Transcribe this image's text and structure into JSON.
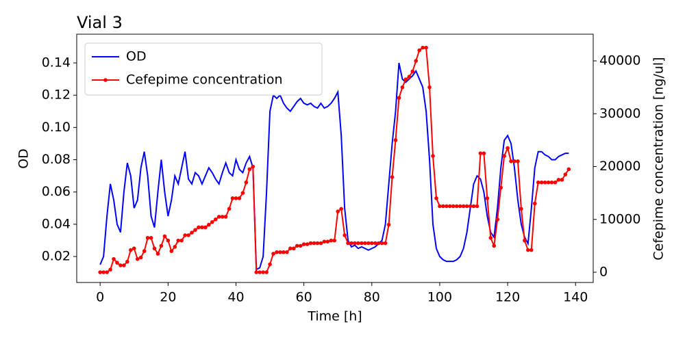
{
  "chart_data": {
    "type": "line",
    "title": "Vial 3",
    "x_label": "Time [h]",
    "y_label": "OD",
    "y2_label": "Cefepime concentration [ng/ul]",
    "xlim": [
      -6.9,
      145.2
    ],
    "ylim": [
      0.0039,
      0.1578
    ],
    "y2lim": [
      -1942,
      45050
    ],
    "xticks": [
      0,
      20,
      40,
      60,
      80,
      100,
      120,
      140
    ],
    "yticks": [
      0.02,
      0.04,
      0.06,
      0.08,
      {
        "value": 0.1,
        "label": "0.10"
      },
      0.12,
      0.14
    ],
    "y2ticks": [
      0,
      10000,
      20000,
      30000,
      40000
    ],
    "legend": "upper left",
    "x": [
      0,
      1,
      2,
      3,
      4,
      5,
      6,
      7,
      8,
      9,
      10,
      11,
      12,
      13,
      14,
      15,
      16,
      17,
      18,
      19,
      20,
      21,
      22,
      23,
      24,
      25,
      26,
      27,
      28,
      29,
      30,
      31,
      32,
      33,
      34,
      35,
      36,
      37,
      38,
      39,
      40,
      41,
      42,
      43,
      44,
      45,
      46,
      47,
      48,
      49,
      50,
      51,
      52,
      53,
      54,
      55,
      56,
      57,
      58,
      59,
      60,
      61,
      62,
      63,
      64,
      65,
      66,
      67,
      68,
      69,
      70,
      71,
      72,
      73,
      74,
      75,
      76,
      77,
      78,
      79,
      80,
      81,
      82,
      83,
      84,
      85,
      86,
      87,
      88,
      89,
      90,
      91,
      92,
      93,
      94,
      95,
      96,
      97,
      98,
      99,
      100,
      101,
      102,
      103,
      104,
      105,
      106,
      107,
      108,
      109,
      110,
      111,
      112,
      113,
      114,
      115,
      116,
      117,
      118,
      119,
      120,
      121,
      122,
      123,
      124,
      125,
      126,
      127,
      128,
      129,
      130,
      131,
      132,
      133,
      134,
      135,
      136,
      137,
      138
    ],
    "series": [
      {
        "name": "OD",
        "color": "#0000ff",
        "axis": "y",
        "marker": false,
        "values": [
          0.015,
          0.02,
          0.045,
          0.065,
          0.055,
          0.04,
          0.035,
          0.06,
          0.078,
          0.07,
          0.05,
          0.055,
          0.075,
          0.085,
          0.07,
          0.045,
          0.038,
          0.06,
          0.08,
          0.06,
          0.045,
          0.055,
          0.07,
          0.065,
          0.075,
          0.085,
          0.068,
          0.065,
          0.072,
          0.07,
          0.065,
          0.07,
          0.075,
          0.072,
          0.068,
          0.065,
          0.072,
          0.078,
          0.072,
          0.07,
          0.08,
          0.074,
          0.072,
          0.078,
          0.082,
          0.075,
          0.012,
          0.013,
          0.02,
          0.06,
          0.11,
          0.12,
          0.118,
          0.12,
          0.115,
          0.112,
          0.11,
          0.113,
          0.116,
          0.118,
          0.115,
          0.114,
          0.115,
          0.113,
          0.112,
          0.115,
          0.112,
          0.113,
          0.115,
          0.118,
          0.122,
          0.095,
          0.05,
          0.03,
          0.026,
          0.027,
          0.025,
          0.026,
          0.025,
          0.024,
          0.025,
          0.026,
          0.028,
          0.03,
          0.04,
          0.065,
          0.09,
          0.11,
          0.14,
          0.13,
          0.128,
          0.13,
          0.132,
          0.135,
          0.13,
          0.125,
          0.11,
          0.08,
          0.04,
          0.025,
          0.02,
          0.018,
          0.017,
          0.017,
          0.017,
          0.018,
          0.02,
          0.025,
          0.035,
          0.05,
          0.065,
          0.07,
          0.068,
          0.06,
          0.045,
          0.035,
          0.032,
          0.05,
          0.075,
          0.092,
          0.095,
          0.09,
          0.075,
          0.055,
          0.04,
          0.032,
          0.028,
          0.05,
          0.075,
          0.085,
          0.085,
          0.083,
          0.082,
          0.08,
          0.08,
          0.082,
          0.083,
          0.084,
          0.084
        ]
      },
      {
        "name": "Cefepime concentration",
        "color": "#ff0000",
        "axis": "y2",
        "marker": true,
        "values": [
          0,
          0,
          0,
          500,
          2500,
          1800,
          1300,
          1300,
          2000,
          4200,
          4500,
          2500,
          2800,
          4000,
          6500,
          6500,
          4500,
          3500,
          5000,
          6800,
          6000,
          4000,
          4800,
          6000,
          6000,
          7000,
          7000,
          7500,
          8000,
          8500,
          8500,
          8500,
          9000,
          9500,
          10000,
          10500,
          10500,
          10500,
          12000,
          14000,
          14000,
          14000,
          15000,
          17000,
          19500,
          20000,
          0,
          0,
          0,
          0,
          1500,
          3500,
          3800,
          3800,
          3800,
          3800,
          4500,
          4500,
          5000,
          5000,
          5300,
          5300,
          5500,
          5500,
          5500,
          5500,
          5800,
          5800,
          6000,
          6000,
          11500,
          12000,
          7000,
          5500,
          5500,
          5500,
          5500,
          5500,
          5500,
          5500,
          5500,
          5500,
          5500,
          5500,
          5500,
          9000,
          18000,
          25000,
          33000,
          35000,
          36500,
          37000,
          38000,
          40000,
          42000,
          42500,
          42500,
          35000,
          22000,
          14000,
          12500,
          12500,
          12500,
          12500,
          12500,
          12500,
          12500,
          12500,
          12500,
          12500,
          12500,
          12500,
          22500,
          22500,
          14000,
          6500,
          5000,
          10000,
          16000,
          22000,
          23500,
          21000,
          21000,
          21000,
          12000,
          6000,
          4200,
          4200,
          13000,
          17000,
          17000,
          17000,
          17000,
          17000,
          17000,
          17500,
          17500,
          18500,
          19500
        ]
      }
    ]
  }
}
